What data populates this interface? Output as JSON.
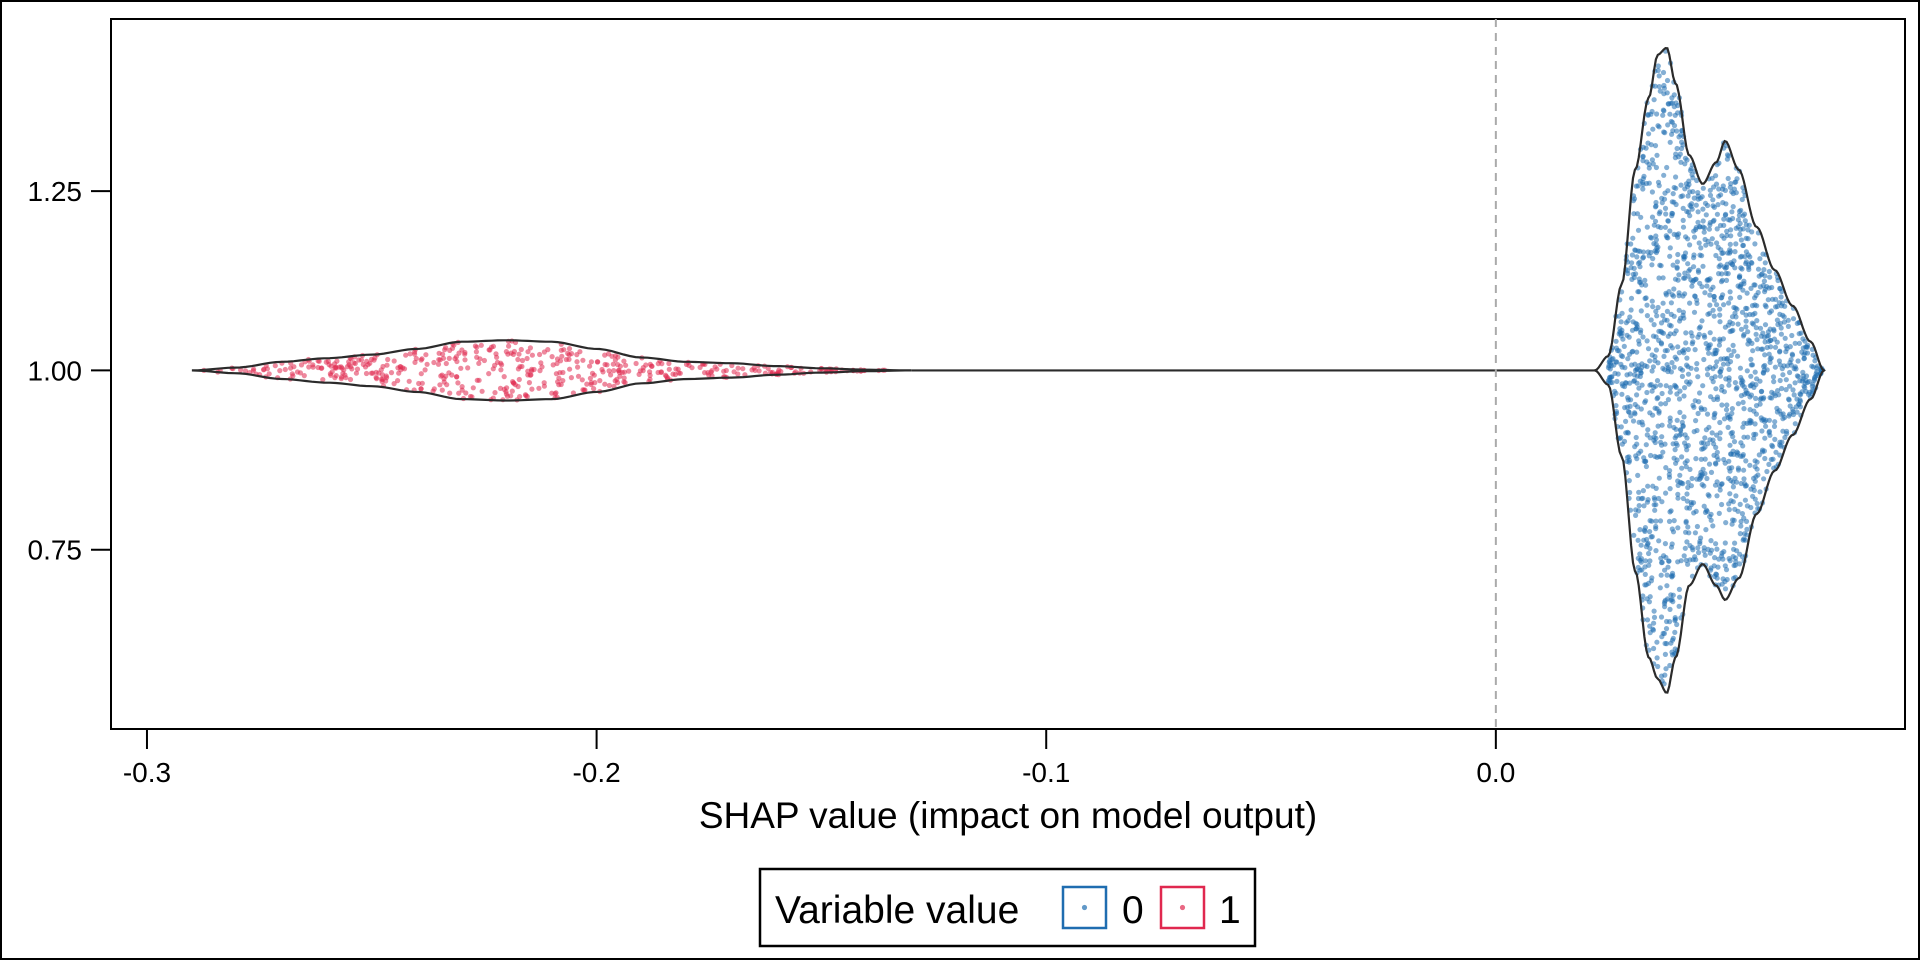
{
  "chart_data": {
    "type": "violin",
    "xlabel": "SHAP value (impact on model output)",
    "ylabel": "",
    "xlim": [
      -0.308,
      0.091
    ],
    "ylim": [
      0.5,
      1.49
    ],
    "x_ticks": [
      "-0.3",
      "-0.2",
      "-0.1",
      "0.0"
    ],
    "x_tick_values": [
      -0.3,
      -0.2,
      -0.1,
      0.0
    ],
    "y_ticks": [
      "0.75",
      "1.00",
      "1.25"
    ],
    "y_tick_values": [
      0.75,
      1.0,
      1.25
    ],
    "reference_line": {
      "x": 0.0,
      "style": "dashed",
      "color": "#aaaaaa"
    },
    "grid": false,
    "legend": {
      "title": "Variable value",
      "placement": "bottom-center",
      "entries": [
        {
          "label": "0",
          "color": "#1f6db0"
        },
        {
          "label": "1",
          "color": "#e0284f"
        }
      ]
    },
    "series": [
      {
        "name": "0",
        "color": "#1f6db0",
        "x_range": [
          0.025,
          0.073
        ],
        "density_profile": [
          [
            0.022,
            0.0
          ],
          [
            0.025,
            0.02
          ],
          [
            0.028,
            0.12
          ],
          [
            0.031,
            0.28
          ],
          [
            0.034,
            0.38
          ],
          [
            0.036,
            0.44
          ],
          [
            0.038,
            0.45
          ],
          [
            0.04,
            0.4
          ],
          [
            0.043,
            0.3
          ],
          [
            0.046,
            0.26
          ],
          [
            0.049,
            0.29
          ],
          [
            0.051,
            0.32
          ],
          [
            0.054,
            0.28
          ],
          [
            0.058,
            0.2
          ],
          [
            0.062,
            0.14
          ],
          [
            0.066,
            0.09
          ],
          [
            0.07,
            0.04
          ],
          [
            0.073,
            0.0
          ]
        ],
        "lower_profile": [
          [
            0.022,
            0.0
          ],
          [
            0.025,
            0.02
          ],
          [
            0.028,
            0.12
          ],
          [
            0.031,
            0.28
          ],
          [
            0.034,
            0.4
          ],
          [
            0.036,
            0.43
          ],
          [
            0.038,
            0.45
          ],
          [
            0.04,
            0.4
          ],
          [
            0.043,
            0.3
          ],
          [
            0.046,
            0.27
          ],
          [
            0.049,
            0.3
          ],
          [
            0.051,
            0.32
          ],
          [
            0.054,
            0.29
          ],
          [
            0.058,
            0.2
          ],
          [
            0.062,
            0.14
          ],
          [
            0.066,
            0.09
          ],
          [
            0.07,
            0.04
          ],
          [
            0.073,
            0.0
          ]
        ]
      },
      {
        "name": "1",
        "color": "#e0284f",
        "x_range": [
          -0.29,
          -0.13
        ],
        "density_profile": [
          [
            -0.29,
            0.0
          ],
          [
            -0.28,
            0.004
          ],
          [
            -0.27,
            0.012
          ],
          [
            -0.26,
            0.017
          ],
          [
            -0.25,
            0.022
          ],
          [
            -0.24,
            0.03
          ],
          [
            -0.23,
            0.04
          ],
          [
            -0.22,
            0.042
          ],
          [
            -0.21,
            0.04
          ],
          [
            -0.2,
            0.03
          ],
          [
            -0.19,
            0.018
          ],
          [
            -0.18,
            0.012
          ],
          [
            -0.17,
            0.01
          ],
          [
            -0.16,
            0.006
          ],
          [
            -0.15,
            0.003
          ],
          [
            -0.14,
            0.001
          ],
          [
            -0.13,
            0.0
          ]
        ]
      }
    ]
  }
}
